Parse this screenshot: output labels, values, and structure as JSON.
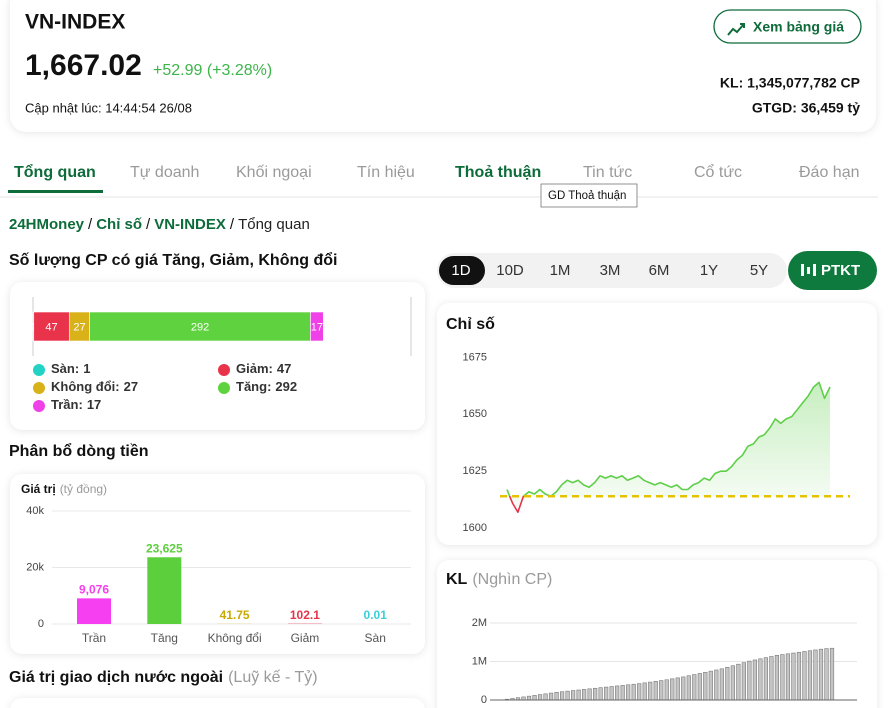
{
  "header": {
    "title": "VN-INDEX",
    "price": "1,667.02",
    "change": "+52.99 (+3.28%)",
    "updated": "Cập nhật lúc: 14:44:54 26/08",
    "button": "Xem bảng giá",
    "volume": "KL: 1,345,077,782 CP",
    "turnover": "GTGD: 36,459 tỷ"
  },
  "tabs": [
    "Tổng quan",
    "Tự doanh",
    "Khối ngoại",
    "Tín hiệu",
    "Thoả thuận",
    "Tin tức",
    "Cổ tức",
    "Đáo hạn"
  ],
  "tooltip": "GD Thoả thuận",
  "breadcrumb": {
    "items": [
      "24HMoney",
      "Chỉ số",
      "VN-INDEX",
      "Tổng quan"
    ],
    "separator": "/"
  },
  "ranges": [
    "1D",
    "10D",
    "1M",
    "3M",
    "6M",
    "1Y",
    "5Y"
  ],
  "ptkt": "PTKT",
  "sections": {
    "foreign": {
      "title": "Giá trị giao dịch nước ngoài",
      "subtitle": "(Luỹ kế - Tỷ)"
    }
  },
  "chart_data": [
    {
      "type": "stacked_bar",
      "title": "Số lượng CP có giá Tăng, Giảm, Không đổi",
      "xlim": [
        0,
        500
      ],
      "legend_separator": ":",
      "series": [
        {
          "name": "Sàn",
          "color": "#22d3c5",
          "values": [
            1
          ]
        },
        {
          "name": "Giảm",
          "color": "#e8334a",
          "values": [
            47
          ]
        },
        {
          "name": "Không đổi",
          "color": "#d9b21a",
          "values": [
            27
          ]
        },
        {
          "name": "Tăng",
          "color": "#5fd33f",
          "values": [
            292
          ]
        },
        {
          "name": "Trần",
          "color": "#f040e8",
          "values": [
            17
          ]
        }
      ]
    },
    {
      "type": "bar",
      "title": "Phân bổ dòng tiền",
      "ylabel": "Giá trị",
      "yunit": "(tỷ đồng)",
      "categories": [
        "Trần",
        "Tăng",
        "Không đổi",
        "Giảm",
        "Sàn"
      ],
      "values": [
        9076,
        23625,
        41.75,
        102.1,
        0.01
      ],
      "value_labels": [
        "9,076",
        "23,625",
        "41.75",
        "102.1",
        "0.01"
      ],
      "colors": [
        "#f53ff0",
        "#5ccf3c",
        "#c9a800",
        "#e8334a",
        "#3ccfd6"
      ],
      "ylim": [
        0,
        40000
      ],
      "yticks": [
        0,
        {
          "value": 20000,
          "label": "20k"
        },
        {
          "value": 40000,
          "label": "40k"
        }
      ],
      "grid": true
    },
    {
      "type": "line",
      "title": "Chỉ số",
      "color": "#5fcf4a",
      "below_color": "#e8334a",
      "reference_line": 1614.03,
      "reference_color": "#e6c300",
      "values": [
        1617,
        1611,
        1607,
        1614,
        1616,
        1615,
        1617,
        1615,
        1614,
        1616,
        1619,
        1621,
        1620,
        1621,
        1619,
        1618,
        1620,
        1623,
        1622,
        1623,
        1622,
        1623,
        1621,
        1622,
        1623,
        1621,
        1620,
        1619,
        1620,
        1619,
        1618,
        1619,
        1617,
        1617,
        1619,
        1620,
        1622,
        1621,
        1624,
        1625,
        1625,
        1627,
        1630,
        1632,
        1636,
        1637,
        1640,
        1641,
        1644,
        1648,
        1646,
        1648,
        1649,
        1652,
        1655,
        1658,
        1662,
        1664,
        1657,
        1662
      ],
      "ylim": [
        1597,
        1680
      ],
      "yticks": [
        1600,
        1625,
        1650,
        1675
      ],
      "grid": false
    },
    {
      "type": "bar",
      "title": "KL",
      "subtitle": "(Nghìn CP)",
      "color": "#c4c4c4",
      "values": [
        20000,
        40000,
        60000,
        80000,
        100000,
        120000,
        140000,
        160000,
        180000,
        200000,
        215000,
        230000,
        245000,
        260000,
        275000,
        290000,
        305000,
        320000,
        335000,
        350000,
        365000,
        380000,
        395000,
        410000,
        425000,
        445000,
        465000,
        485000,
        505000,
        525000,
        550000,
        575000,
        600000,
        630000,
        660000,
        690000,
        720000,
        750000,
        780000,
        810000,
        850000,
        890000,
        930000,
        970000,
        1010000,
        1040000,
        1070000,
        1100000,
        1130000,
        1160000,
        1180000,
        1200000,
        1220000,
        1240000,
        1260000,
        1280000,
        1300000,
        1320000,
        1335000,
        1345000
      ],
      "ylim": [
        0,
        2000000
      ],
      "yticks": [
        0,
        {
          "value": 1000000,
          "label": "1M"
        },
        {
          "value": 2000000,
          "label": "2M"
        }
      ],
      "grid": true
    }
  ]
}
